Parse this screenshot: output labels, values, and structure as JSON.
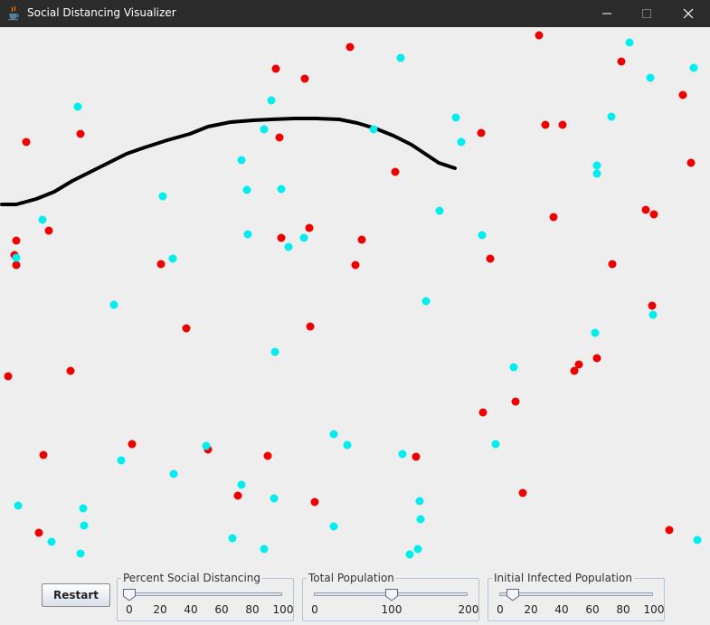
{
  "window": {
    "title": "Social Distancing Visualizer",
    "icons": {
      "app": "java-cup-icon",
      "minimize": "minimize-icon",
      "maximize": "maximize-icon",
      "close": "close-icon"
    }
  },
  "colors": {
    "infected": "#ee0000",
    "healthy": "#00eeee",
    "path": "#000000",
    "background": "#eeeeee",
    "titlebar": "#2b2b2b"
  },
  "controls": {
    "restart_label": "Restart",
    "sliders": [
      {
        "title": "Percent Social Distancing",
        "min": 0,
        "max": 100,
        "value": 0,
        "ticks": [
          "0",
          "20",
          "40",
          "60",
          "80",
          "100"
        ]
      },
      {
        "title": "Total Population",
        "min": 0,
        "max": 200,
        "value": 100,
        "ticks": [
          "0",
          "100",
          "200"
        ]
      },
      {
        "title": "Initial Infected Population",
        "min": 0,
        "max": 100,
        "value": 8,
        "ticks": [
          "0",
          "20",
          "40",
          "60",
          "80",
          "100"
        ]
      }
    ]
  }
}
